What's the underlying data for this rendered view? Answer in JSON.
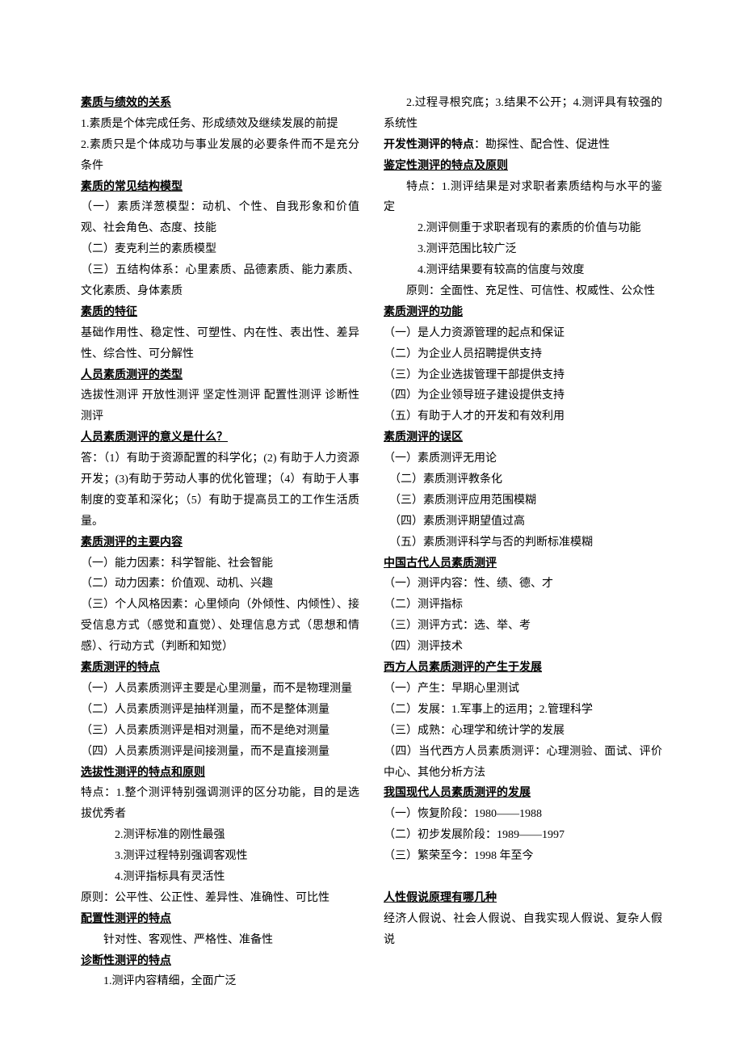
{
  "sections": [
    {
      "type": "heading",
      "text": "素质与绩效的关系"
    },
    {
      "type": "line",
      "text": "1.素质是个体完成任务、形成绩效及继续发展的前提"
    },
    {
      "type": "line",
      "text": "2.素质只是个体成功与事业发展的必要条件而不是充分条件"
    },
    {
      "type": "heading",
      "text": "素质的常见结构模型"
    },
    {
      "type": "line",
      "text": "（一）素质洋葱模型：动机、个性、自我形象和价值观、社会角色、态度、技能"
    },
    {
      "type": "line",
      "text": "（二）麦克利兰的素质模型"
    },
    {
      "type": "line",
      "text": "（三）五结构体系：心里素质、品德素质、能力素质、文化素质、身体素质"
    },
    {
      "type": "heading",
      "text": "素质的特征"
    },
    {
      "type": "line",
      "text": "基础作用性、稳定性、可塑性、内在性、表出性、差异性、综合性、可分解性"
    },
    {
      "type": "heading",
      "text": "人员素质测评的类型"
    },
    {
      "type": "line",
      "text": "选拔性测评 开放性测评 坚定性测评 配置性测评 诊断性测评"
    },
    {
      "type": "heading",
      "text": "人员素质测评的意义是什么？"
    },
    {
      "type": "line",
      "text": "答：（1）有助于资源配置的科学化；(2) 有助于人力资源开发；(3)有助于劳动人事的优化管理；（4）有助于人事制度的变革和深化；（5）有助于提高员工的工作生活质量。"
    },
    {
      "type": "heading",
      "text": "素质测评的主要内容"
    },
    {
      "type": "line",
      "text": "（一）能力因素：科学智能、社会智能"
    },
    {
      "type": "line",
      "text": "（二）动力因素：价值观、动机、兴趣"
    },
    {
      "type": "line",
      "text": "（三）个人风格因素：心里倾向（外倾性、内倾性）、接受信息方式（感觉和直觉）、处理信息方式（思想和情感）、行动方式（判断和知觉）"
    },
    {
      "type": "heading",
      "text": "素质测评的特点"
    },
    {
      "type": "line",
      "text": "（一）人员素质测评主要是心里测量，而不是物理测量"
    },
    {
      "type": "line",
      "text": "（二）人员素质测评是抽样测量，而不是整体测量"
    },
    {
      "type": "line",
      "text": "（三）人员素质测评是相对测量，而不是绝对测量"
    },
    {
      "type": "line",
      "text": "（四）人员素质测评是间接测量，而不是直接测量"
    },
    {
      "type": "heading",
      "text": "选拔性测评的特点和原则"
    },
    {
      "type": "line",
      "text": "特点：1.整个测评特别强调测评的区分功能，目的是选拔优秀者"
    },
    {
      "type": "indent3",
      "text": "2.测评标准的刚性最强"
    },
    {
      "type": "indent3",
      "text": "3.测评过程特别强调客观性"
    },
    {
      "type": "indent3",
      "text": "4.测评指标具有灵活性"
    },
    {
      "type": "line",
      "text": "原则：公平性、公正性、差异性、准确性、可比性"
    },
    {
      "type": "heading",
      "text": "配置性测评的特点"
    },
    {
      "type": "indent",
      "text": "针对性、客观性、严格性、准备性"
    },
    {
      "type": "heading",
      "text": "诊断性测评的特点"
    },
    {
      "type": "indent",
      "text": "1.测评内容精细，全面广泛"
    },
    {
      "type": "indent",
      "text": "2.过程寻根究底；3.结果不公开；4.测评具有较强的系统性"
    },
    {
      "type": "mixed",
      "bold": "开发性测评的特点",
      "rest": "：勘探性、配合性、促进性"
    },
    {
      "type": "heading",
      "text": "鉴定性测评的特点及原则"
    },
    {
      "type": "indent",
      "text": "特点：1.测评结果是对求职者素质结构与水平的鉴定"
    },
    {
      "type": "indent3",
      "text": "2.测评侧重于求职者现有的素质的价值与功能"
    },
    {
      "type": "indent3",
      "text": "3.测评范围比较广泛"
    },
    {
      "type": "indent3",
      "text": "4.测评结果要有较高的信度与效度"
    },
    {
      "type": "indent",
      "text": "原则：全面性、充足性、可信性、权威性、公众性"
    },
    {
      "type": "heading",
      "text": "素质测评的功能"
    },
    {
      "type": "line",
      "text": "（一）是人力资源管理的起点和保证"
    },
    {
      "type": "line",
      "text": "（二）为企业人员招聘提供支持"
    },
    {
      "type": "line",
      "text": "（三）为企业选拔管理干部提供支持"
    },
    {
      "type": "line",
      "text": "（四）为企业领导班子建设提供支持"
    },
    {
      "type": "line",
      "text": "（五）有助于人才的开发和有效利用"
    },
    {
      "type": "heading",
      "text": "素质测评的误区"
    },
    {
      "type": "line",
      "text": "（一）素质测评无用论"
    },
    {
      "type": "line",
      "text": "　（二）素质测评教条化"
    },
    {
      "type": "line",
      "text": "　（三）素质测评应用范围模糊"
    },
    {
      "type": "line",
      "text": "　（四）素质测评期望值过高"
    },
    {
      "type": "line",
      "text": "　（五）素质测评科学与否的判断标准模糊"
    },
    {
      "type": "heading",
      "text": "中国古代人员素质测评"
    },
    {
      "type": "line",
      "text": "（一）测评内容：性、绩、德、才"
    },
    {
      "type": "line",
      "text": "（二）测评指标"
    },
    {
      "type": "line",
      "text": "（三）测评方式：选、举、考"
    },
    {
      "type": "line",
      "text": "（四）测评技术"
    },
    {
      "type": "heading",
      "text": "西方人员素质测评的产生于发展"
    },
    {
      "type": "line",
      "text": "（一）产生：早期心里测试"
    },
    {
      "type": "line",
      "text": "（二）发展：1.军事上的运用；2.管理科学"
    },
    {
      "type": "line",
      "text": "（三）成熟：心理学和统计学的发展"
    },
    {
      "type": "line",
      "text": "（四）当代西方人员素质测评：心理测验、面试、评价中心、其他分析方法"
    },
    {
      "type": "heading",
      "text": "我国现代人员素质测评的发展"
    },
    {
      "type": "line",
      "text": "（一）恢复阶段：1980——1988"
    },
    {
      "type": "line",
      "text": "（二）初步发展阶段：1989——1997"
    },
    {
      "type": "line",
      "text": "（三）繁荣至今：1998 年至今"
    },
    {
      "type": "blank",
      "text": ""
    },
    {
      "type": "heading",
      "text": "人性假说原理有哪几种"
    },
    {
      "type": "line",
      "text": "经济人假说、社会人假说、自我实现人假说、复杂人假说"
    }
  ]
}
